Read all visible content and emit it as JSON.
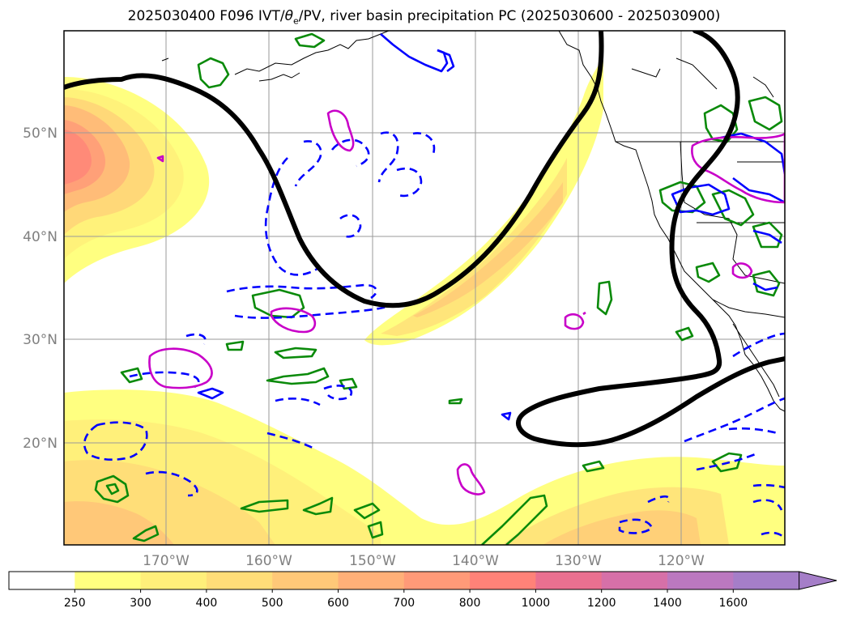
{
  "title_prefix": "2025030400 F096 IVT/",
  "title_theta": "θ",
  "title_sub": "e",
  "title_suffix": "/PV, river basin precipitation PC (2025030600 - 2025030900)",
  "map": {
    "lon_labels": [
      "170°W",
      "160°W",
      "150°W",
      "140°W",
      "130°W",
      "120°W"
    ],
    "lat_labels": [
      "50°N",
      "40°N",
      "30°N",
      "20°N"
    ]
  },
  "colorbar": {
    "levels": [
      "250",
      "300",
      "400",
      "500",
      "600",
      "700",
      "800",
      "1000",
      "1200",
      "1400",
      "1600"
    ],
    "colors": [
      "#ffffff",
      "#ffff80",
      "#ffef7a",
      "#ffdd78",
      "#ffc878",
      "#ffb078",
      "#ff9a78",
      "#ff8278",
      "#ea7090",
      "#d670a8",
      "#bb78c0",
      "#a57ec8"
    ]
  },
  "colors": {
    "ivt_low": "#ffff80",
    "ivt_mid": "#ffdd78",
    "ivt_high": "#ff8a78",
    "pv_contour": "#000000",
    "precip_green": "#0a8a0a",
    "theta_blue": "#0000ff",
    "theta_magenta": "#c800c8"
  }
}
